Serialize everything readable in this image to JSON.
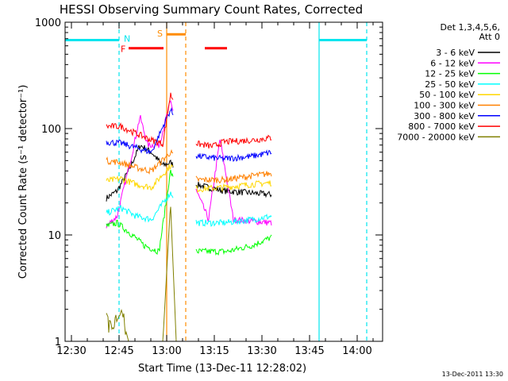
{
  "chart_data": {
    "type": "line",
    "title": "HESSI Observing Summary Count Rates, Corrected",
    "xlabel": "Start Time (13-Dec-11 12:28:02)",
    "ylabel": "Corrected Count Rate (s⁻¹ detector⁻¹)",
    "y_scale": "log",
    "xlim": [
      "12:28",
      "14:08"
    ],
    "ylim": [
      1,
      1000
    ],
    "x_ticks": [
      "12:30",
      "12:45",
      "13:00",
      "13:15",
      "13:30",
      "13:45",
      "14:00"
    ],
    "y_ticks": [
      "1",
      "10",
      "100",
      "1000"
    ],
    "grid": false,
    "legend_position": "right",
    "legend_title": [
      "Det 1,3,4,5,6,",
      "Att 0"
    ],
    "flag_bars": [
      {
        "label": "N",
        "color": "#00e5ee",
        "value": 680,
        "segments": [
          [
            "12:28",
            "12:45"
          ],
          [
            "13:48",
            "14:03"
          ]
        ]
      },
      {
        "label": "F",
        "color": "#ff0000",
        "value": 570,
        "segments": [
          [
            "12:48",
            "12:59"
          ],
          [
            "13:12",
            "13:19"
          ]
        ]
      },
      {
        "label": "S",
        "color": "#ff8c00",
        "value": 770,
        "segments": [
          [
            "13:00",
            "13:06"
          ]
        ]
      }
    ],
    "series": [
      {
        "name": "3 - 6 keV",
        "color": "#000000",
        "start": "12:41",
        "end": "13:33",
        "gap": [
          "13:02",
          "13:09"
        ],
        "values": [
          [
            12.68,
            22
          ],
          [
            12.74,
            26
          ],
          [
            12.8,
            40
          ],
          [
            12.86,
            70
          ],
          [
            12.92,
            60
          ],
          [
            12.98,
            45
          ],
          [
            13.02,
            48
          ],
          [
            13.15,
            30
          ],
          [
            13.22,
            28
          ],
          [
            13.3,
            26
          ],
          [
            13.55,
            24
          ]
        ]
      },
      {
        "name": "6 - 12 keV",
        "color": "#ff00ff",
        "start": "12:41",
        "end": "13:33",
        "gap": [
          "13:02",
          "13:09"
        ],
        "values": [
          [
            12.68,
            12
          ],
          [
            12.74,
            15
          ],
          [
            12.82,
            60
          ],
          [
            12.86,
            130
          ],
          [
            12.9,
            70
          ],
          [
            12.96,
            70
          ],
          [
            13.02,
            180
          ],
          [
            13.16,
            25
          ],
          [
            13.22,
            14
          ],
          [
            13.28,
            80
          ],
          [
            13.35,
            14
          ],
          [
            13.55,
            13
          ]
        ]
      },
      {
        "name": "12 - 25 keV",
        "color": "#00ff00",
        "start": "12:41",
        "end": "13:33",
        "gap": [
          "13:02",
          "13:09"
        ],
        "values": [
          [
            12.68,
            12
          ],
          [
            12.74,
            13
          ],
          [
            12.82,
            10
          ],
          [
            12.88,
            8
          ],
          [
            12.96,
            7
          ],
          [
            13.02,
            40
          ],
          [
            13.16,
            7
          ],
          [
            13.24,
            7
          ],
          [
            13.32,
            7
          ],
          [
            13.45,
            8
          ],
          [
            13.55,
            9.5
          ]
        ]
      },
      {
        "name": "25 - 50 keV",
        "color": "#00ffff",
        "start": "12:41",
        "end": "13:33",
        "gap": [
          "13:02",
          "13:09"
        ],
        "values": [
          [
            12.68,
            16
          ],
          [
            12.76,
            18
          ],
          [
            12.84,
            15
          ],
          [
            12.92,
            14
          ],
          [
            13.02,
            25
          ],
          [
            13.16,
            13
          ],
          [
            13.3,
            13
          ],
          [
            13.45,
            14
          ],
          [
            13.55,
            15
          ]
        ]
      },
      {
        "name": "50 - 100 keV",
        "color": "#ffd700",
        "start": "12:41",
        "end": "13:33",
        "gap": [
          "13:02",
          "13:09"
        ],
        "values": [
          [
            12.68,
            32
          ],
          [
            12.76,
            34
          ],
          [
            12.84,
            30
          ],
          [
            12.92,
            28
          ],
          [
            13.02,
            45
          ],
          [
            13.16,
            27
          ],
          [
            13.3,
            28
          ],
          [
            13.45,
            30
          ],
          [
            13.55,
            31
          ]
        ]
      },
      {
        "name": "100 - 300 keV",
        "color": "#ff8000",
        "start": "12:41",
        "end": "13:33",
        "gap": [
          "13:02",
          "13:09"
        ],
        "values": [
          [
            12.68,
            50
          ],
          [
            12.76,
            48
          ],
          [
            12.84,
            43
          ],
          [
            12.92,
            40
          ],
          [
            13.02,
            60
          ],
          [
            13.16,
            33
          ],
          [
            13.3,
            33
          ],
          [
            13.45,
            36
          ],
          [
            13.55,
            38
          ]
        ]
      },
      {
        "name": "300 - 800 keV",
        "color": "#0000ff",
        "start": "12:41",
        "end": "13:33",
        "gap": [
          "13:02",
          "13:09"
        ],
        "values": [
          [
            12.68,
            75
          ],
          [
            12.76,
            73
          ],
          [
            12.84,
            66
          ],
          [
            12.92,
            60
          ],
          [
            13.02,
            150
          ],
          [
            13.16,
            55
          ],
          [
            13.3,
            52
          ],
          [
            13.45,
            55
          ],
          [
            13.55,
            60
          ]
        ]
      },
      {
        "name": "800 - 7000 keV",
        "color": "#ff0000",
        "start": "12:41",
        "end": "13:33",
        "gap": [
          "13:02",
          "13:09"
        ],
        "values": [
          [
            12.68,
            105
          ],
          [
            12.76,
            105
          ],
          [
            12.84,
            90
          ],
          [
            12.92,
            78
          ],
          [
            12.98,
            72
          ],
          [
            13.02,
            210
          ],
          [
            13.16,
            72
          ],
          [
            13.24,
            68
          ],
          [
            13.3,
            75
          ],
          [
            13.45,
            78
          ],
          [
            13.55,
            82
          ]
        ]
      },
      {
        "name": "7000 - 20000 keV",
        "color": "#808000",
        "start": "12:41",
        "end": "13:05",
        "gap": null,
        "values": [
          [
            12.68,
            1.9
          ],
          [
            12.72,
            1.3
          ],
          [
            12.76,
            1.9
          ],
          [
            12.8,
            1.0
          ],
          [
            12.98,
            1.0
          ],
          [
            13.02,
            20
          ],
          [
            13.05,
            1.0
          ]
        ]
      }
    ],
    "footer": "13-Dec-2011 13:30"
  }
}
